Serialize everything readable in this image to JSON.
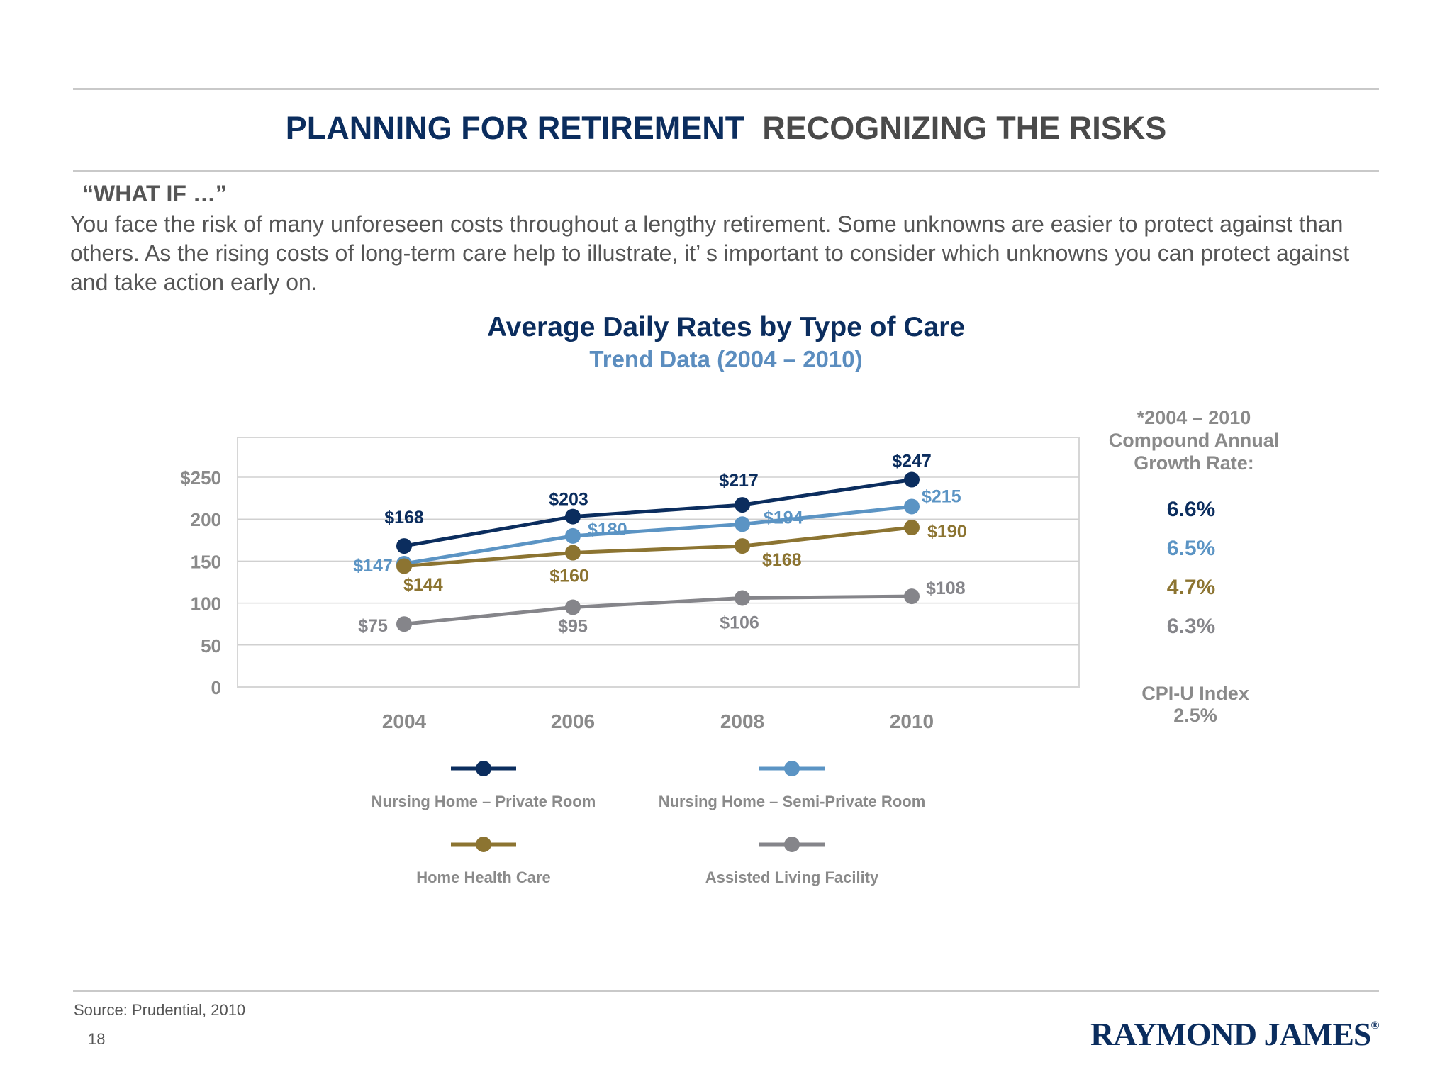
{
  "header": {
    "title_main": "PLANNING FOR RETIREMENT",
    "title_sub": "RECOGNIZING THE RISKS"
  },
  "intro": {
    "heading": "“WHAT IF …”",
    "body": "You face the risk of many unforeseen costs throughout a lengthy retirement. Some unknowns are easier to protect against than others. As the rising costs of long-term care help to illustrate, it’ s important to consider which unknowns you can protect against and take action early on."
  },
  "chart_data": {
    "type": "line",
    "title": "Average Daily Rates by Type of Care",
    "subtitle": "Trend Data (2004 – 2010)",
    "x": [
      "2004",
      "2006",
      "2008",
      "2010"
    ],
    "ylim": [
      0,
      250
    ],
    "yticks": [
      "0",
      "50",
      "100",
      "150",
      "200",
      "$250"
    ],
    "ytick_values": [
      0,
      50,
      100,
      150,
      200,
      250
    ],
    "grid": true,
    "series": [
      {
        "name": "Nursing Home – Private Room",
        "values": [
          168,
          203,
          217,
          247
        ],
        "labels": [
          "$168",
          "$203",
          "$217",
          "$247"
        ],
        "color": "#0b2d5e"
      },
      {
        "name": "Nursing Home – Semi-Private Room",
        "values": [
          147,
          180,
          194,
          215
        ],
        "labels": [
          "$147",
          "$180",
          "$194",
          "$215"
        ],
        "color": "#5b94c4"
      },
      {
        "name": "Home Health Care",
        "values": [
          144,
          160,
          168,
          190
        ],
        "labels": [
          "$144",
          "$160",
          "$168",
          "$190"
        ],
        "color": "#8c7431"
      },
      {
        "name": "Assisted Living Facility",
        "values": [
          75,
          95,
          106,
          108
        ],
        "labels": [
          "$75",
          "$95",
          "$106",
          "$108"
        ],
        "color": "#85858a"
      }
    ],
    "legend_placement": "bottom",
    "cagr": {
      "heading": [
        "*2004 – 2010",
        "Compound Annual",
        "Growth Rate:"
      ],
      "values": [
        "6.6%",
        "6.5%",
        "4.7%",
        "6.3%"
      ],
      "cpi_label": "CPI-U Index",
      "cpi_value": "2.5%"
    }
  },
  "footer": {
    "source": "Source: Prudential, 2010",
    "page_number": "18",
    "logo": "RAYMOND JAMES",
    "logo_mark": "®"
  }
}
